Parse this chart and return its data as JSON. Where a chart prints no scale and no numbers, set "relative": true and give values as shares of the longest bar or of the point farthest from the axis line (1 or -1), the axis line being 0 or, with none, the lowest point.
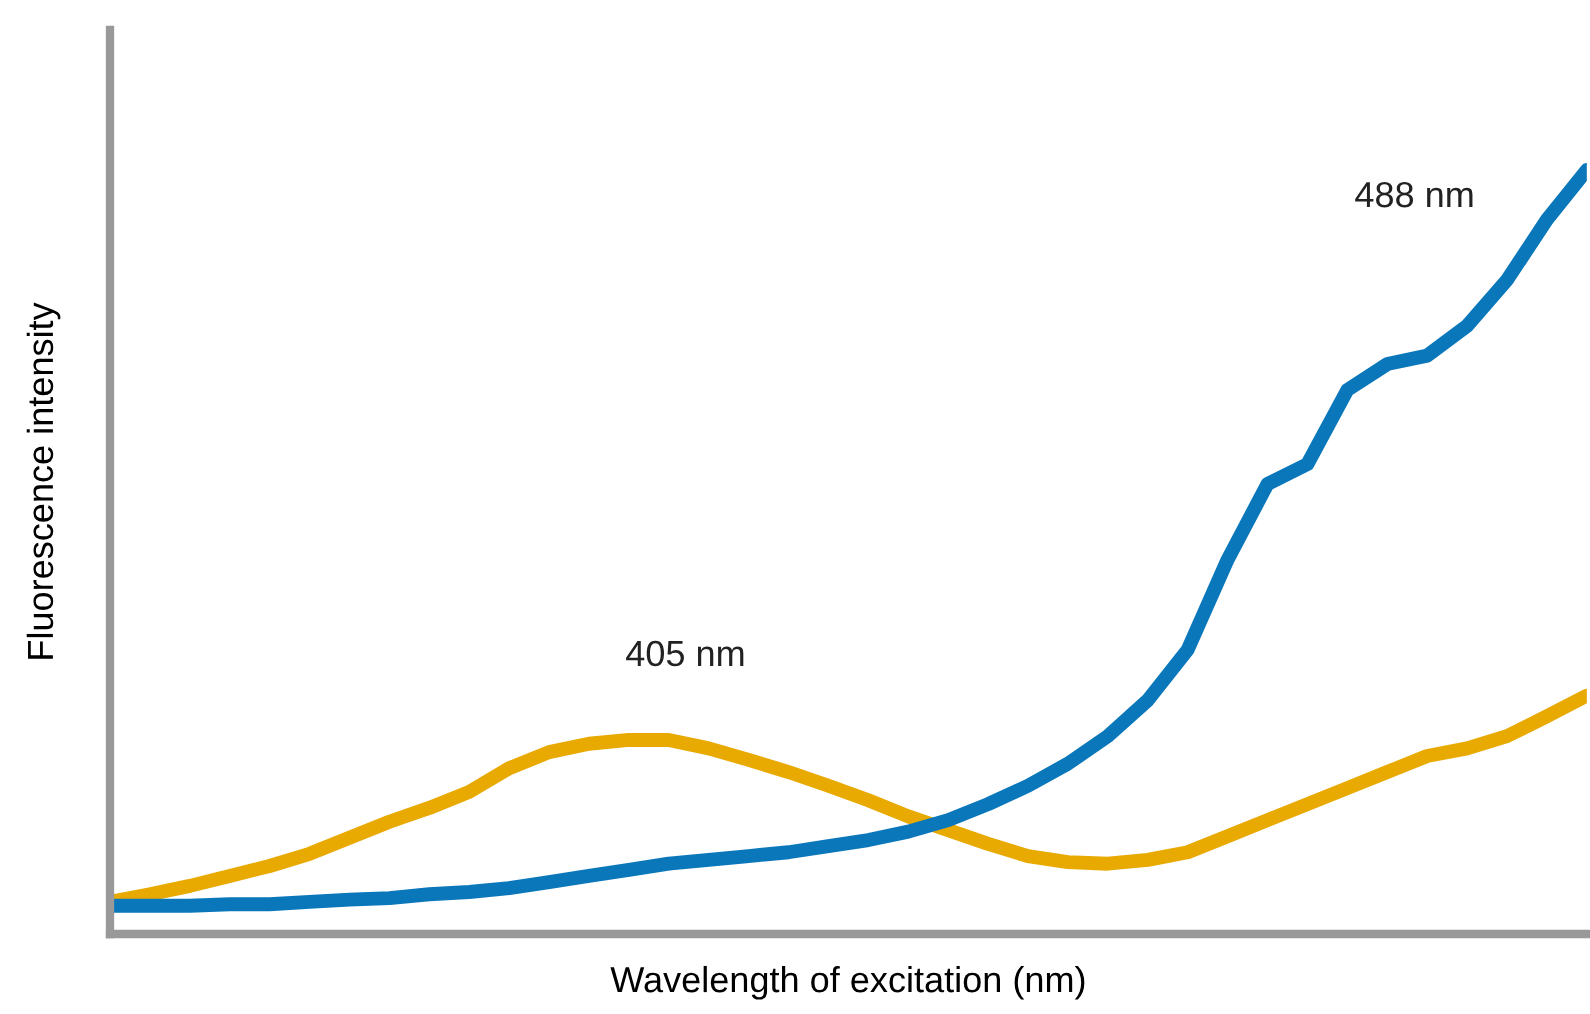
{
  "chart_data": {
    "type": "line",
    "relative": true,
    "xlabel": "Wavelength of excitation (nm)",
    "ylabel": "Fluorescence intensity",
    "grid": false,
    "legend": false,
    "marker": "none",
    "line_style": "solid",
    "categories": [
      null,
      null,
      null,
      null,
      null,
      null,
      null,
      null,
      null,
      null,
      null,
      null,
      null,
      null,
      null,
      null,
      null,
      null,
      null,
      null,
      null,
      null,
      null,
      null,
      null,
      null,
      null,
      null,
      null,
      null,
      null,
      null,
      null,
      null,
      null,
      null,
      null,
      null
    ],
    "series": [
      {
        "name": "405 nm",
        "color": "#e8a900",
        "values": [
          0.042,
          0.052,
          0.063,
          0.076,
          0.089,
          0.105,
          0.126,
          0.147,
          0.165,
          0.186,
          0.217,
          0.238,
          0.249,
          0.254,
          0.254,
          0.243,
          0.228,
          0.212,
          0.194,
          0.175,
          0.154,
          0.136,
          0.118,
          0.102,
          0.094,
          0.092,
          0.097,
          0.107,
          0.128,
          0.149,
          0.17,
          0.191,
          0.212,
          0.233,
          0.243,
          0.259,
          0.285,
          0.312
        ]
      },
      {
        "name": "488 nm",
        "color": "#0a77bb",
        "values": [
          0.037,
          0.037,
          0.037,
          0.039,
          0.039,
          0.042,
          0.045,
          0.047,
          0.052,
          0.055,
          0.06,
          0.068,
          0.076,
          0.084,
          0.092,
          0.097,
          0.102,
          0.107,
          0.115,
          0.123,
          0.134,
          0.149,
          0.17,
          0.194,
          0.223,
          0.259,
          0.306,
          0.372,
          0.49,
          0.589,
          0.615,
          0.712,
          0.746,
          0.757,
          0.796,
          0.856,
          0.935,
          1
        ]
      }
    ]
  }
}
